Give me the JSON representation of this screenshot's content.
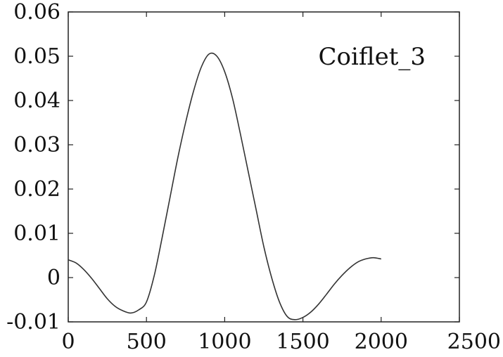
{
  "chart_data": {
    "type": "line",
    "title": "",
    "xlabel": "",
    "ylabel": "",
    "xlim": [
      0,
      2500
    ],
    "ylim": [
      -0.01,
      0.06
    ],
    "grid": false,
    "x_ticks": [
      "0",
      "500",
      "1000",
      "1500",
      "2000",
      "2500"
    ],
    "y_ticks": [
      "-0.01",
      "0",
      "0.01",
      "0.02",
      "0.03",
      "0.04",
      "0.05",
      "0.06"
    ],
    "annotation": "Coiflet_3",
    "series": [
      {
        "x": [
          0,
          50,
          100,
          150,
          200,
          250,
          300,
          350,
          400,
          450,
          500,
          550,
          600,
          650,
          700,
          750,
          800,
          850,
          900,
          950,
          1000,
          1050,
          1100,
          1150,
          1200,
          1250,
          1300,
          1350,
          1400,
          1450,
          1500,
          1550,
          1600,
          1650,
          1700,
          1750,
          1800,
          1850,
          1900,
          1950,
          2000
        ],
        "y": [
          0.004,
          0.0033,
          0.0018,
          -0.0002,
          -0.0025,
          -0.0048,
          -0.0065,
          -0.0075,
          -0.008,
          -0.0073,
          -0.0055,
          0.0005,
          0.009,
          0.018,
          0.027,
          0.035,
          0.042,
          0.0475,
          0.0505,
          0.05,
          0.0465,
          0.0405,
          0.0325,
          0.024,
          0.0155,
          0.007,
          0.0,
          -0.0055,
          -0.0088,
          -0.0095,
          -0.009,
          -0.0078,
          -0.006,
          -0.0038,
          -0.0015,
          0.0005,
          0.0022,
          0.0035,
          0.0042,
          0.0045,
          0.0042
        ]
      }
    ]
  }
}
